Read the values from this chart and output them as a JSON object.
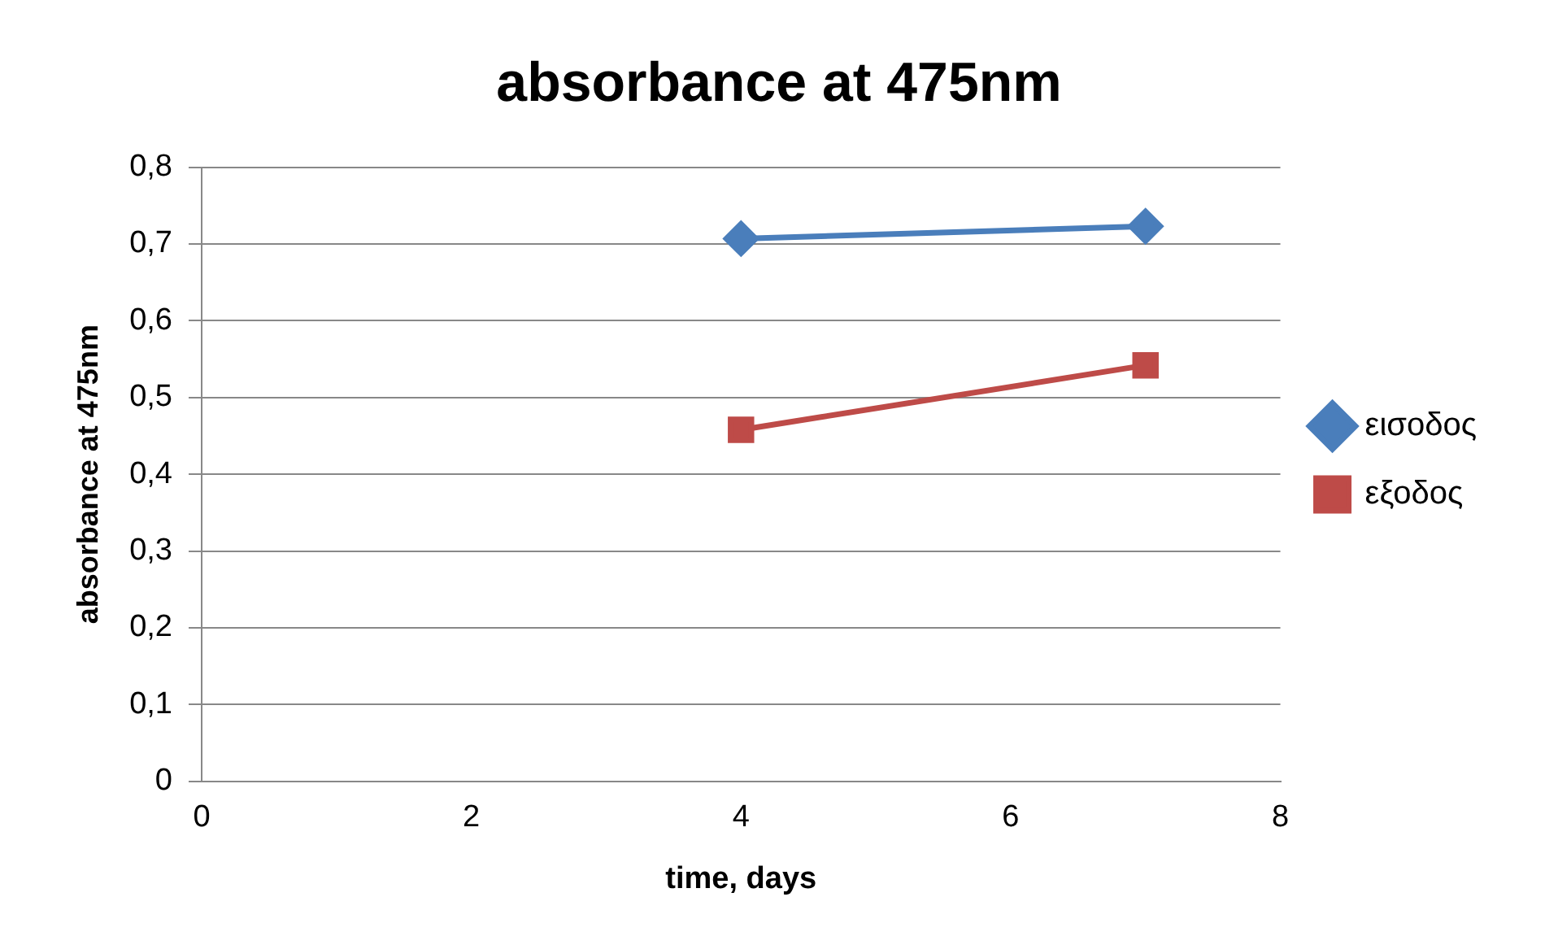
{
  "chart_data": {
    "type": "line",
    "title": "absorbance at 475nm",
    "xlabel": "time, days",
    "ylabel": "absorbance at 475nm",
    "x": [
      4,
      7
    ],
    "series": [
      {
        "name": "εισοδος",
        "color": "#4a7ebb",
        "values": [
          0.707,
          0.723
        ],
        "marker": "diamond"
      },
      {
        "name": "εξοδος",
        "color": "#be4b48",
        "values": [
          0.458,
          0.542
        ],
        "marker": "square"
      }
    ],
    "xlim": [
      0,
      8
    ],
    "xticks": [
      0,
      2,
      4,
      6,
      8
    ],
    "ylim": [
      0,
      0.8
    ],
    "yticks": [
      {
        "value": 0,
        "label": "0"
      },
      {
        "value": 0.1,
        "label": "0,1"
      },
      {
        "value": 0.2,
        "label": "0,2"
      },
      {
        "value": 0.3,
        "label": "0,3"
      },
      {
        "value": 0.4,
        "label": "0,4"
      },
      {
        "value": 0.5,
        "label": "0,5"
      },
      {
        "value": 0.6,
        "label": "0,6"
      },
      {
        "value": 0.7,
        "label": "0,7"
      },
      {
        "value": 0.8,
        "label": "0,8"
      }
    ],
    "grid": "y",
    "legend": "right"
  }
}
